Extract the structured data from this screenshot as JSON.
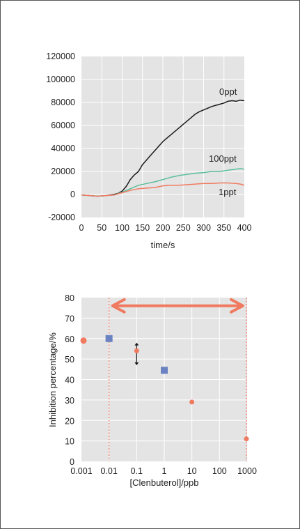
{
  "chart_data": [
    {
      "type": "line",
      "xlabel": "time/s",
      "ylabel": "",
      "xlim": [
        0,
        400
      ],
      "ylim": [
        -20000,
        120000
      ],
      "x_ticks": [
        0,
        50,
        100,
        150,
        200,
        250,
        300,
        350,
        400
      ],
      "y_ticks": [
        -20000,
        0,
        20000,
        40000,
        60000,
        80000,
        100000,
        120000
      ],
      "grid": true,
      "series": [
        {
          "name": "0ppt",
          "color": "#1a1a1a",
          "x": [
            0,
            20,
            40,
            60,
            80,
            90,
            100,
            110,
            120,
            130,
            140,
            150,
            160,
            170,
            180,
            190,
            200,
            210,
            220,
            230,
            240,
            250,
            260,
            270,
            280,
            290,
            300,
            310,
            320,
            330,
            340,
            350,
            360,
            370,
            380,
            390,
            400
          ],
          "y": [
            -500,
            -1000,
            -1500,
            -1000,
            0,
            1000,
            3000,
            7000,
            13000,
            17000,
            20000,
            26000,
            30000,
            34000,
            38000,
            42000,
            46000,
            49000,
            52000,
            55000,
            58000,
            61000,
            64000,
            67000,
            70000,
            72000,
            73500,
            75000,
            76500,
            77500,
            78500,
            79500,
            81000,
            81500,
            81000,
            82000,
            81500
          ]
        },
        {
          "name": "100ppt",
          "color": "#5bbf9a",
          "x": [
            0,
            20,
            40,
            60,
            80,
            100,
            120,
            140,
            160,
            180,
            200,
            220,
            240,
            260,
            280,
            300,
            320,
            340,
            360,
            380,
            390,
            400
          ],
          "y": [
            -500,
            -1000,
            -1500,
            -1000,
            -500,
            2000,
            5000,
            8000,
            9500,
            11000,
            13000,
            15000,
            16500,
            17500,
            18500,
            19000,
            20000,
            20000,
            21000,
            22000,
            22500,
            22000
          ]
        },
        {
          "name": "1ppt",
          "color": "#f07a60",
          "x": [
            0,
            20,
            40,
            60,
            80,
            100,
            120,
            140,
            160,
            180,
            200,
            220,
            240,
            260,
            280,
            300,
            320,
            340,
            360,
            380,
            390,
            400
          ],
          "y": [
            -500,
            -1000,
            -1500,
            -1000,
            -500,
            1500,
            3500,
            5000,
            5500,
            6000,
            7500,
            8000,
            8000,
            8500,
            9000,
            9500,
            9500,
            10000,
            10000,
            9500,
            9000,
            8000
          ]
        }
      ]
    },
    {
      "type": "scatter",
      "xlabel": "[Clenbuterol]/ppb",
      "ylabel": "Inhibition percentage/%",
      "xscale": "log",
      "xlim": [
        0.001,
        1000
      ],
      "ylim": [
        0,
        80
      ],
      "x_ticks": [
        0.001,
        0.01,
        0.1,
        1,
        10,
        100,
        1000
      ],
      "x_tick_labels": [
        "0.001",
        "0.01",
        "0.1",
        "1",
        "10",
        "100",
        "1000"
      ],
      "y_ticks": [
        0,
        10,
        20,
        30,
        40,
        50,
        60,
        70,
        80
      ],
      "grid": true,
      "series": [
        {
          "color": "#f07a60",
          "marker": "circle",
          "x": [
            0.001,
            0.01,
            0.1,
            1,
            10,
            1000
          ],
          "y": [
            59,
            60,
            54,
            45,
            29,
            11
          ]
        },
        {
          "color": "#6b82c2",
          "marker": "square",
          "x": [
            0.01,
            1
          ],
          "y": [
            60,
            44.5
          ]
        }
      ],
      "error_arrow": {
        "x": 0.1,
        "y_low": 47,
        "y_high": 58,
        "color": "#1a1a1a"
      },
      "reference_lines": {
        "x": [
          0.01,
          1000
        ],
        "color": "#f07a60",
        "style": "dotted"
      },
      "range_arrow": {
        "from": 0.01,
        "to": 1000,
        "y": 76,
        "color": "#f07a60"
      }
    }
  ]
}
